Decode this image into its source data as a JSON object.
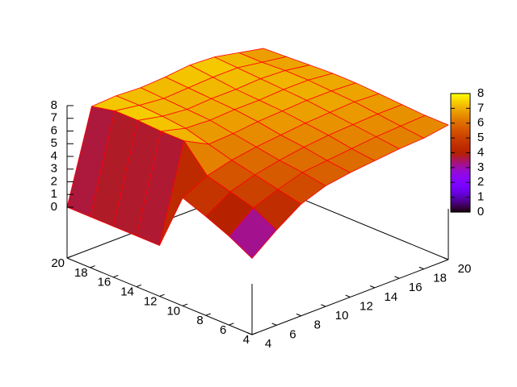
{
  "chart_data": {
    "type": "surface",
    "x": [
      4,
      6,
      8,
      10,
      12,
      14,
      16,
      18,
      20
    ],
    "y": [
      4,
      6,
      8,
      10,
      12,
      14,
      16,
      18,
      20
    ],
    "z": [
      [
        2,
        3.5,
        4.8,
        5.5,
        5.8,
        6.0,
        6.2,
        6.3,
        6.6
      ],
      [
        3,
        4.5,
        5.2,
        5.8,
        6.0,
        6.2,
        6.4,
        6.5,
        6.6
      ],
      [
        3.8,
        5.0,
        5.6,
        6.0,
        6.3,
        6.5,
        6.6,
        6.7,
        6.7
      ],
      [
        4.5,
        5.5,
        6.0,
        6.3,
        6.5,
        6.7,
        6.8,
        6.9,
        6.8
      ],
      [
        0,
        7.5,
        6.5,
        6.6,
        6.8,
        6.9,
        7.0,
        7.0,
        6.9
      ],
      [
        0,
        7.5,
        7.0,
        6.9,
        7.0,
        7.0,
        7.1,
        7.1,
        6.9
      ],
      [
        0,
        7.6,
        7.2,
        7.0,
        7.1,
        7.1,
        7.2,
        7.1,
        6.8
      ],
      [
        0,
        7.6,
        7.3,
        7.1,
        7.2,
        7.3,
        7.3,
        7.0,
        6.7
      ],
      [
        0,
        7.2,
        7.3,
        7.2,
        7.3,
        7.5,
        7.4,
        7.0,
        6.6
      ]
    ],
    "xlim": [
      4,
      20
    ],
    "ylim": [
      4,
      20
    ],
    "zlim": [
      0,
      8
    ],
    "xticks": [
      4,
      6,
      8,
      10,
      12,
      14,
      16,
      18,
      20
    ],
    "yticks": [
      4,
      6,
      8,
      10,
      12,
      14,
      16,
      18,
      20
    ],
    "zticks": [
      0,
      1,
      2,
      3,
      4,
      5,
      6,
      7,
      8
    ],
    "cblim": [
      0,
      8
    ],
    "cbticks": [
      0,
      1,
      2,
      3,
      4,
      5,
      6,
      7,
      8
    ]
  }
}
